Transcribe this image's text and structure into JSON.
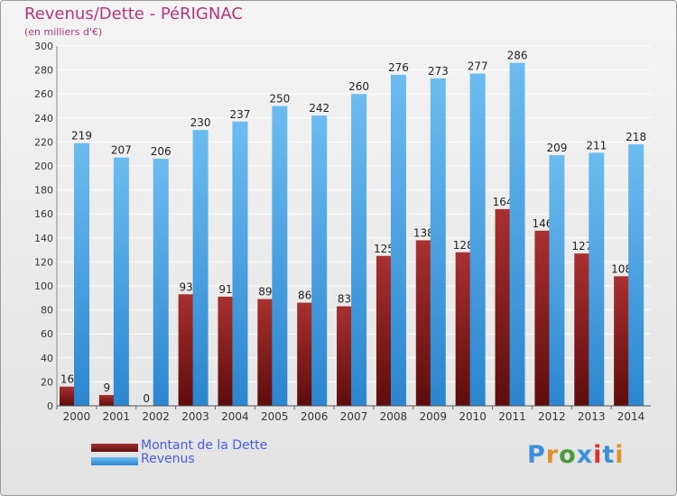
{
  "chart_data": {
    "type": "bar",
    "title": "Revenus/Dette - PéRIGNAC",
    "subtitle": "(en milliers d'€)",
    "categories": [
      "2000",
      "2001",
      "2002",
      "2003",
      "2004",
      "2005",
      "2006",
      "2007",
      "2008",
      "2009",
      "2010",
      "2011",
      "2012",
      "2013",
      "2014"
    ],
    "series": [
      {
        "name": "Montant de la Dette",
        "values": [
          16,
          9,
          0,
          93,
          91,
          89,
          86,
          83,
          125,
          138,
          128,
          164,
          146,
          127,
          108
        ],
        "color": "#7a1515"
      },
      {
        "name": "Revenus",
        "values": [
          219,
          207,
          206,
          230,
          237,
          250,
          242,
          260,
          276,
          273,
          277,
          286,
          209,
          211,
          218
        ],
        "color": "#3f9fe2"
      }
    ],
    "ylim": [
      0,
      300
    ],
    "yticks": [
      0,
      20,
      40,
      60,
      80,
      100,
      120,
      140,
      160,
      180,
      200,
      220,
      240,
      260,
      280,
      300
    ],
    "grid": true,
    "legend": "bottom-left"
  },
  "colors": {
    "title": "#b5357a",
    "legend_text": "#4a5ce0",
    "grid": "#ffffff",
    "axis_text": "#333333"
  },
  "logo": {
    "text": "Proxiti",
    "letter_colors": [
      "#3c8fd8",
      "#e0912a",
      "#4a9a3a",
      "#3c8fd8",
      "#d8332a",
      "#3c8fd8",
      "#e0912a"
    ]
  }
}
